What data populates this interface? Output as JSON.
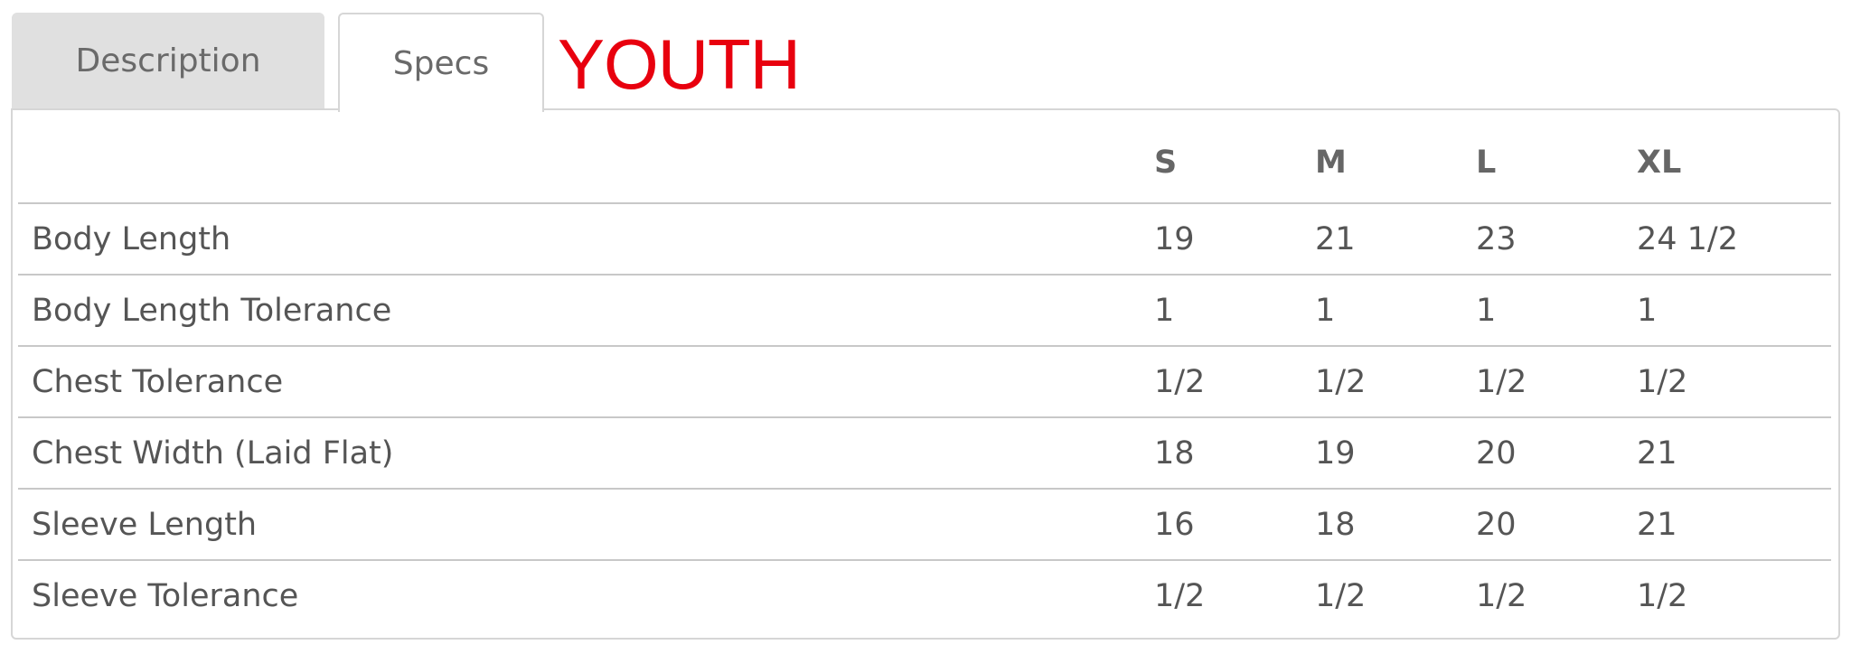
{
  "tabs": [
    {
      "label": "Description",
      "active": false
    },
    {
      "label": "Specs",
      "active": true
    }
  ],
  "heading": "YOUTH",
  "colors": {
    "heading": "#e8000e",
    "inactive_tab": "#e0e0e0",
    "text": "#555555"
  },
  "table": {
    "columns": [
      "",
      "S",
      "M",
      "L",
      "XL"
    ],
    "rows": [
      {
        "label": "Body Length",
        "values": [
          "19",
          "21",
          "23",
          "24 1/2"
        ]
      },
      {
        "label": "Body Length Tolerance",
        "values": [
          "1",
          "1",
          "1",
          "1"
        ]
      },
      {
        "label": "Chest Tolerance",
        "values": [
          "1/2",
          "1/2",
          "1/2",
          "1/2"
        ]
      },
      {
        "label": "Chest Width (Laid Flat)",
        "values": [
          "18",
          "19",
          "20",
          "21"
        ]
      },
      {
        "label": "Sleeve Length",
        "values": [
          "16",
          "18",
          "20",
          "21"
        ]
      },
      {
        "label": "Sleeve Tolerance",
        "values": [
          "1/2",
          "1/2",
          "1/2",
          "1/2"
        ]
      }
    ]
  }
}
